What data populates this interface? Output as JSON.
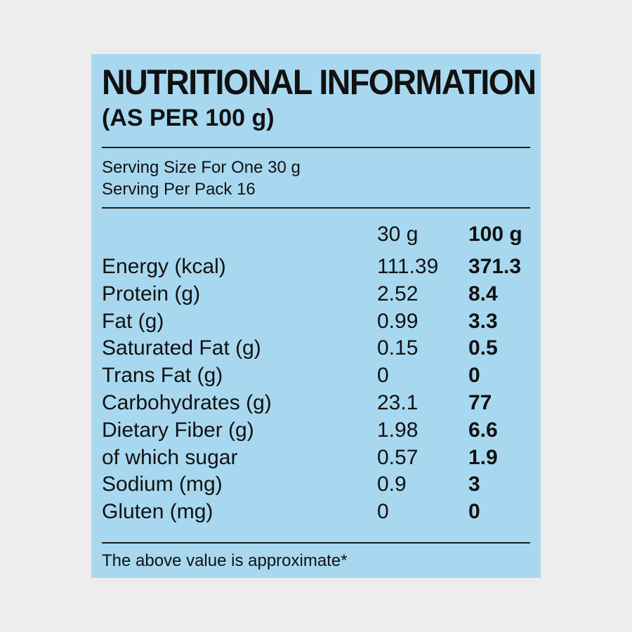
{
  "label": {
    "title": "NUTRITIONAL INFORMATION",
    "subtitle": "(AS PER 100 g)",
    "serving_size": "Serving Size For One 30 g",
    "servings_per_pack": "Serving Per Pack 16",
    "columns": [
      "30 g",
      "100 g"
    ],
    "rows": [
      {
        "nutrient": "Energy (kcal)",
        "per_30g": "111.39",
        "per_100g": "371.3"
      },
      {
        "nutrient": "Protein (g)",
        "per_30g": "2.52",
        "per_100g": "8.4"
      },
      {
        "nutrient": "Fat (g)",
        "per_30g": "0.99",
        "per_100g": "3.3"
      },
      {
        "nutrient": "Saturated Fat (g)",
        "per_30g": "0.15",
        "per_100g": "0.5"
      },
      {
        "nutrient": "Trans Fat (g)",
        "per_30g": "0",
        "per_100g": "0"
      },
      {
        "nutrient": "Carbohydrates (g)",
        "per_30g": "23.1",
        "per_100g": "77"
      },
      {
        "nutrient": "Dietary Fiber (g)",
        "per_30g": "1.98",
        "per_100g": "6.6"
      },
      {
        "nutrient": "of which sugar",
        "per_30g": "0.57",
        "per_100g": "1.9"
      },
      {
        "nutrient": "Sodium (mg)",
        "per_30g": "0.9",
        "per_100g": "3"
      },
      {
        "nutrient": "Gluten (mg)",
        "per_30g": "0",
        "per_100g": "0"
      }
    ],
    "footnote": "The above value is approximate*"
  },
  "colors": {
    "background": "#ededed",
    "card": "#a8d8ef",
    "text": "#111111"
  }
}
